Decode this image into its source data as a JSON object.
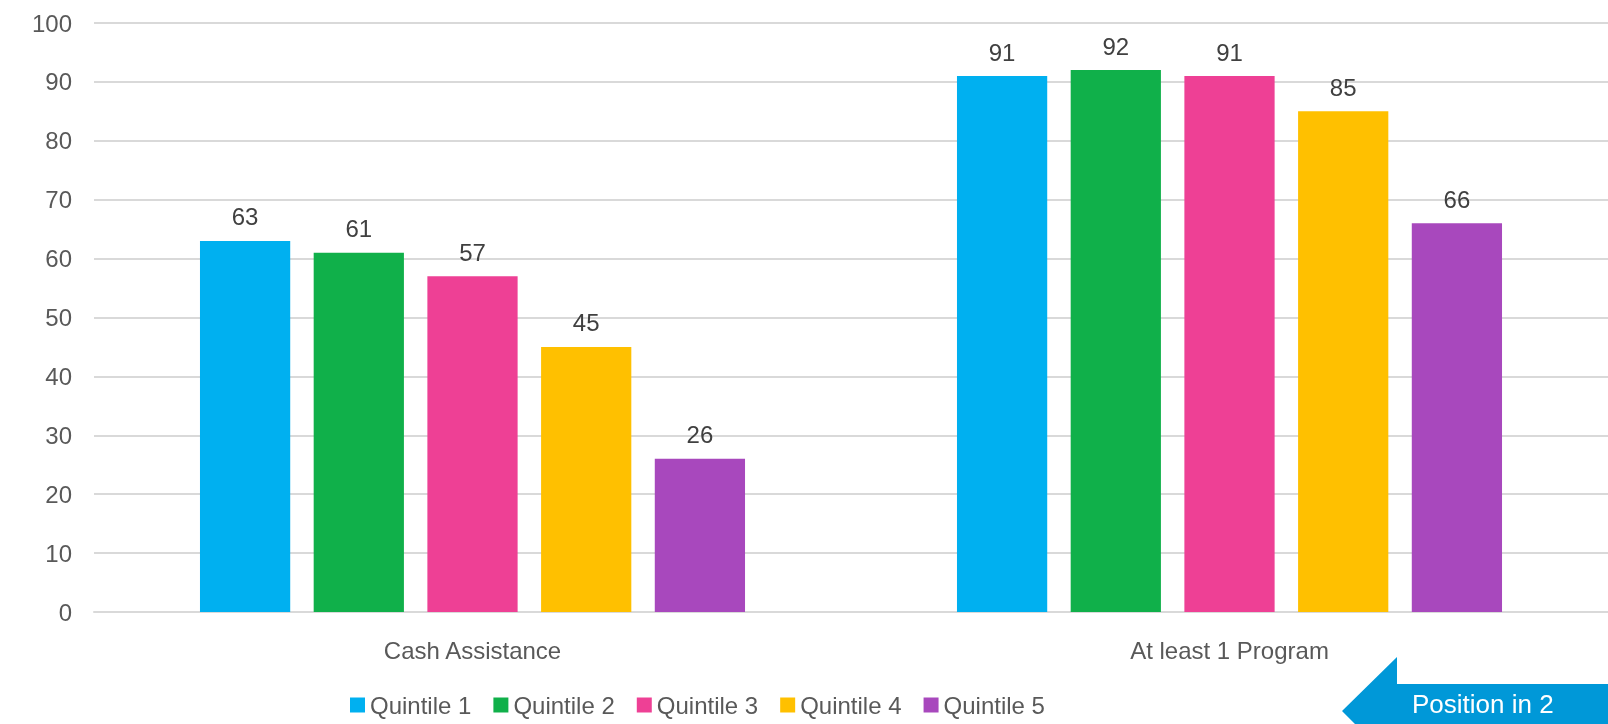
{
  "chart_data": {
    "type": "bar",
    "categories": [
      "Cash Assistance",
      "At least 1 Program"
    ],
    "series": [
      {
        "name": "Quintile 1",
        "color": "#00b0f0",
        "values": [
          63,
          91
        ]
      },
      {
        "name": "Quintile 2",
        "color": "#10b04a",
        "values": [
          61,
          92
        ]
      },
      {
        "name": "Quintile 3",
        "color": "#ee4095",
        "values": [
          57,
          91
        ]
      },
      {
        "name": "Quintile 4",
        "color": "#ffc000",
        "values": [
          45,
          85
        ]
      },
      {
        "name": "Quintile 5",
        "color": "#a848bd",
        "values": [
          26,
          66
        ]
      }
    ],
    "ylim": [
      0,
      100
    ],
    "yticks": [
      0,
      10,
      20,
      30,
      40,
      50,
      60,
      70,
      80,
      90,
      100
    ],
    "grid": "y",
    "legend": "bottom",
    "data_labels": true,
    "annotations": [
      "Position in 2"
    ]
  }
}
